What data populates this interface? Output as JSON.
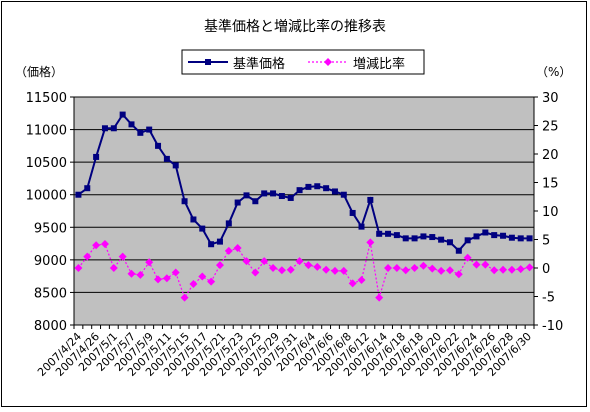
{
  "chart_data": {
    "type": "line",
    "title": "基準価格と増減比率の推移表",
    "y_left_label": "（価格）",
    "y_right_label": "（%）",
    "y_left_range": [
      8000,
      11500
    ],
    "y_left_ticks": [
      8000,
      8500,
      9000,
      9500,
      10000,
      10500,
      11000,
      11500
    ],
    "y_right_range": [
      -10,
      30
    ],
    "y_right_ticks": [
      -10,
      -5,
      0,
      5,
      10,
      15,
      20,
      25,
      30
    ],
    "legend_position": "top-center",
    "plot_background": "#c0c0c0",
    "x_tick_labels": [
      "2007/4/24",
      "2007/4/26",
      "2007/5/1",
      "2007/5/7",
      "2007/5/9",
      "2007/5/11",
      "2007/5/15",
      "2007/5/17",
      "2007/5/21",
      "2007/5/23",
      "2007/5/25",
      "2007/5/29",
      "2007/5/31",
      "2007/6/4",
      "2007/6/6",
      "2007/6/8",
      "2007/6/12",
      "2007/6/14",
      "2007/6/18",
      "2007/6/18",
      "2007/6/20",
      "2007/6/22",
      "2007/6/24",
      "2007/6/26",
      "2007/6/28",
      "2007/6/30"
    ],
    "series": [
      {
        "name": "基準価格",
        "axis": "left",
        "color": "#000080",
        "marker": "square",
        "values": [
          10000,
          10100,
          10580,
          11020,
          11020,
          11230,
          11080,
          10950,
          11000,
          10750,
          10550,
          10450,
          9900,
          9620,
          9480,
          9240,
          9280,
          9560,
          9880,
          9990,
          9900,
          10020,
          10020,
          9980,
          9950,
          10070,
          10120,
          10130,
          10100,
          10050,
          10000,
          9720,
          9510,
          9920,
          9400,
          9400,
          9380,
          9330,
          9330,
          9360,
          9350,
          9310,
          9270,
          9140,
          9300,
          9360,
          9420,
          9380,
          9370,
          9340,
          9330,
          9330
        ]
      },
      {
        "name": "増減比率",
        "axis": "right",
        "color": "#ff00ff",
        "marker": "diamond",
        "values": [
          0,
          2,
          4,
          4.2,
          0,
          2,
          -1,
          -1.2,
          1,
          -2,
          -1.8,
          -0.8,
          -5.2,
          -2.8,
          -1.5,
          -2.4,
          0.5,
          3,
          3.5,
          1.2,
          -0.8,
          1.2,
          0,
          -0.4,
          -0.3,
          1.2,
          0.5,
          0.2,
          -0.3,
          -0.5,
          -0.5,
          -2.7,
          -2.1,
          4.5,
          -5.2,
          0,
          0,
          -0.4,
          0,
          0.4,
          -0.1,
          -0.5,
          -0.4,
          -1.1,
          1.8,
          0.6,
          0.6,
          -0.4,
          -0.3,
          -0.3,
          -0.2,
          0.1
        ]
      }
    ]
  }
}
